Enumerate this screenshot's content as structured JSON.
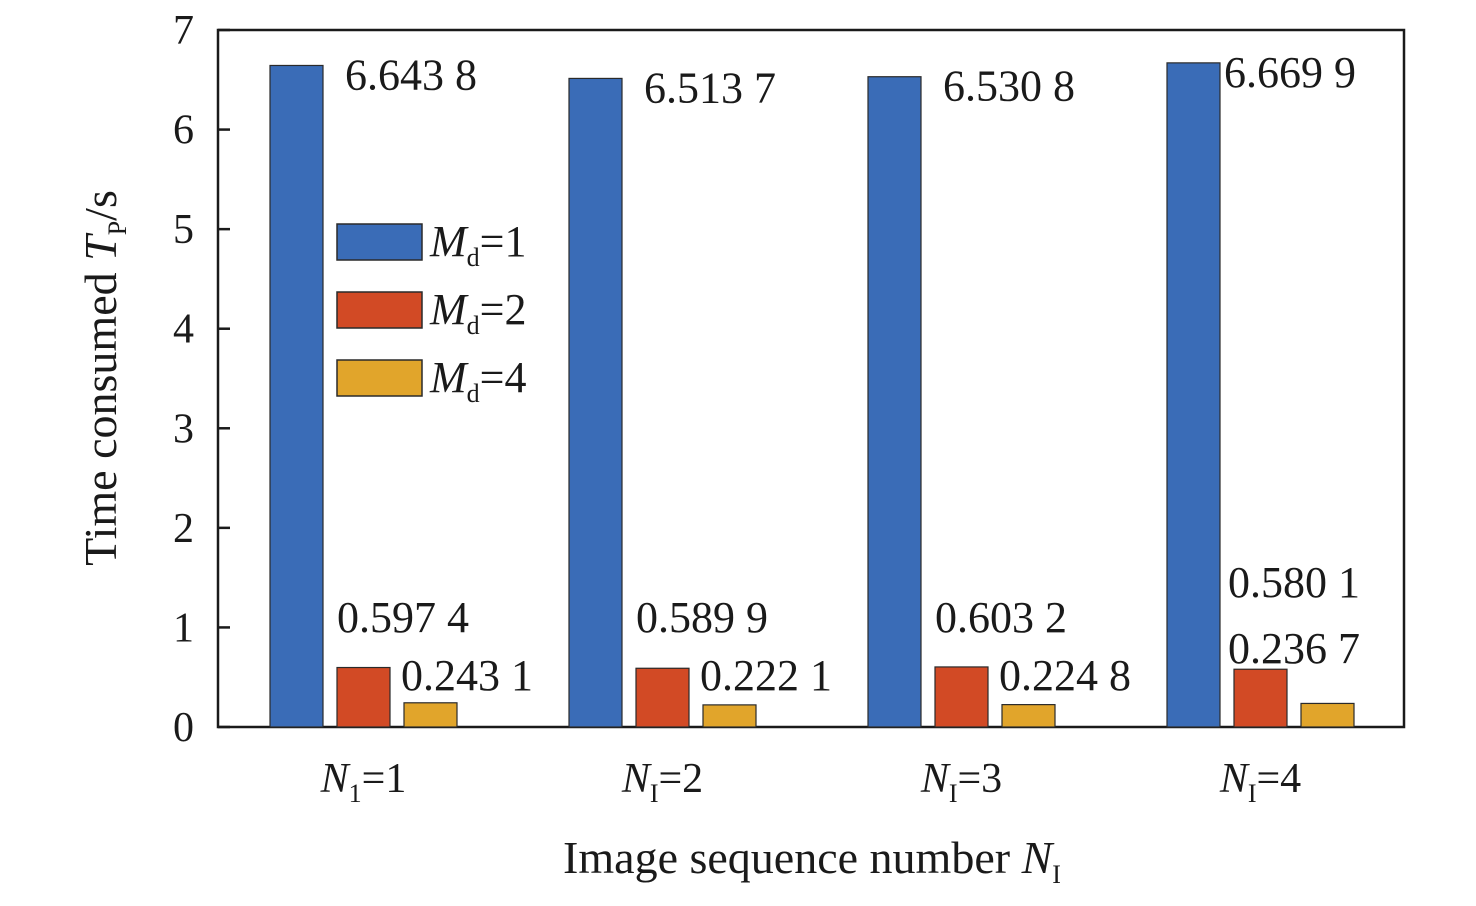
{
  "chart_data": {
    "type": "bar",
    "xlabel": "Image sequence number N",
    "xlabel_sub": "I",
    "ylabel": "Time consumed T",
    "ylabel_sub": "P",
    "ylabel_unit": "/s",
    "ylim": [
      0,
      7
    ],
    "yticks": [
      "0",
      "1",
      "2",
      "3",
      "4",
      "5",
      "6",
      "7"
    ],
    "grid": false,
    "legend_position": "left-middle",
    "categories": [
      {
        "sym": "N",
        "sub": "1",
        "rest": "=1"
      },
      {
        "sym": "N",
        "sub": "I",
        "rest": "=2"
      },
      {
        "sym": "N",
        "sub": "I",
        "rest": "=3"
      },
      {
        "sym": "N",
        "sub": "I",
        "rest": "=4"
      }
    ],
    "series": [
      {
        "name": "M",
        "name_sub": "d",
        "name_rest": "=1",
        "color": "#3a6cb7",
        "values": [
          6.6438,
          6.5137,
          6.5308,
          6.6699
        ],
        "labels": [
          "6.643 8",
          "6.513 7",
          "6.530 8",
          "6.669 9"
        ]
      },
      {
        "name": "M",
        "name_sub": "d",
        "name_rest": "=2",
        "color": "#d24a25",
        "values": [
          0.5974,
          0.5899,
          0.6032,
          0.5801
        ],
        "labels": [
          "0.597 4",
          "0.589 9",
          "0.603 2",
          "0.580 1"
        ]
      },
      {
        "name": "M",
        "name_sub": "d",
        "name_rest": "=4",
        "color": "#e1a52b",
        "values": [
          0.2431,
          0.2221,
          0.2248,
          0.2367
        ],
        "labels": [
          "0.243 1",
          "0.222 1",
          "0.224 8",
          "0.236 7"
        ]
      }
    ]
  }
}
